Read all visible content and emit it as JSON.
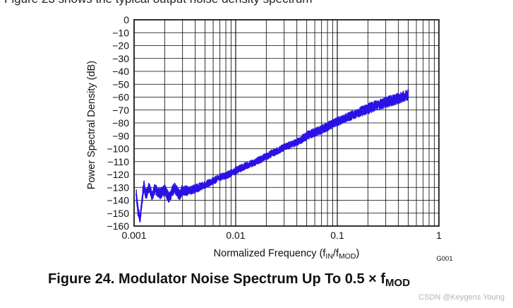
{
  "header_text": "Figure 23 shows the typical output noise density spectrum",
  "chart_data": {
    "type": "line",
    "x_scale": "log",
    "xlim": [
      0.001,
      1
    ],
    "ylim": [
      -160,
      0
    ],
    "x_ticks": [
      0.001,
      0.01,
      0.1,
      1
    ],
    "x_tick_labels": [
      "0.001",
      "0.01",
      "0.1",
      "1"
    ],
    "y_ticks": [
      0,
      -10,
      -20,
      -30,
      -40,
      -50,
      -60,
      -70,
      -80,
      -90,
      -100,
      -110,
      -120,
      -130,
      -140,
      -150,
      -160
    ],
    "y_tick_labels": [
      "0",
      "−10",
      "−20",
      "−30",
      "−40",
      "−50",
      "−60",
      "−70",
      "−80",
      "−90",
      "−100",
      "−110",
      "−120",
      "−130",
      "−140",
      "−150",
      "−160"
    ],
    "xlabel": "Normalized Frequency (f",
    "xlabel_sub1": "IN",
    "xlabel_mid": "/f",
    "xlabel_sub2": "MOD",
    "xlabel_end": ")",
    "ylabel": "Power Spectral Density (dB)",
    "grid": true,
    "series_color": "#2a12e6",
    "series": [
      {
        "x": [
          0.00105,
          0.0011,
          0.00115,
          0.0012,
          0.00125,
          0.0013,
          0.0014,
          0.0015,
          0.0016,
          0.0018,
          0.002,
          0.0022,
          0.0025,
          0.0028,
          0.003,
          0.0035,
          0.004,
          0.005,
          0.006,
          0.007,
          0.008,
          0.01,
          0.012,
          0.015,
          0.02,
          0.025,
          0.03,
          0.04,
          0.05,
          0.07,
          0.1,
          0.15,
          0.2,
          0.3,
          0.4,
          0.5
        ],
        "y": [
          -135,
          -150,
          -153,
          -140,
          -128,
          -136,
          -130,
          -137,
          -131,
          -135,
          -132,
          -138,
          -130,
          -136,
          -132,
          -133,
          -131,
          -128,
          -125,
          -122,
          -121,
          -117,
          -114,
          -111,
          -106,
          -102,
          -99,
          -95,
          -90,
          -85,
          -79,
          -73,
          -69,
          -64,
          -61,
          -58
        ],
        "spread": [
          6,
          6,
          6,
          6,
          6,
          6,
          6,
          6,
          6,
          6,
          6,
          6,
          6,
          6,
          6,
          5,
          5,
          4,
          4,
          4,
          4,
          4,
          4,
          4,
          4,
          4,
          4,
          4,
          5,
          5,
          5,
          5,
          6,
          6,
          6,
          6
        ]
      }
    ],
    "annotation": "G001"
  },
  "caption": {
    "text": "Figure 24.  Modulator Noise Spectrum Up To 0.5 × f",
    "sub": "MOD"
  },
  "watermark": "CSDN @Keygens Young"
}
